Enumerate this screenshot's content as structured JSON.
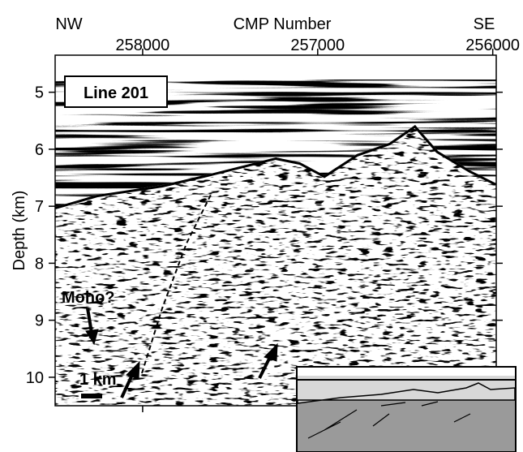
{
  "chart_data": {
    "type": "seismic-section",
    "left_label": "NW",
    "right_label": "SE",
    "xlabel": "CMP Number",
    "ylabel": "Depth (km)",
    "xlim": [
      258500,
      255980
    ],
    "xticks": [
      258000,
      257000,
      256000
    ],
    "ylim": [
      4.35,
      10.5
    ],
    "yticks": [
      5,
      6,
      7,
      8,
      9,
      10
    ],
    "annotations": [
      "Line 201",
      "Moho?",
      "1 km"
    ]
  }
}
